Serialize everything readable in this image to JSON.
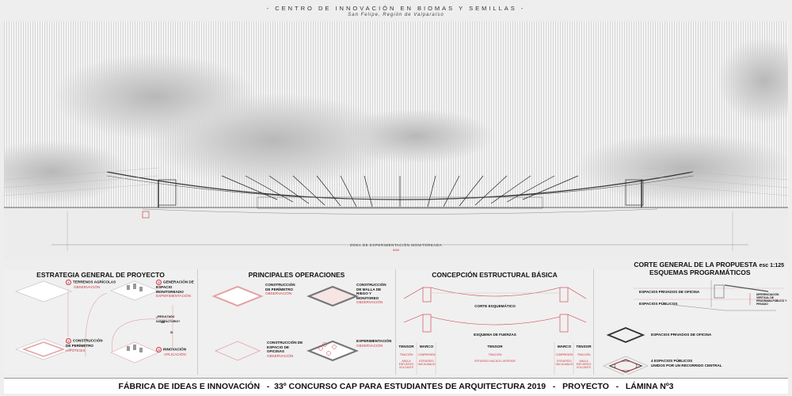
{
  "header": {
    "title": "- CENTRO DE INNOVACIÓN EN BIOMAS Y SEMILLAS -",
    "subtitle": "San Felipe, Región de Valparaíso"
  },
  "section": {
    "dimension_label": "ZONA DE EXPERIMENTACIÓN MONITOREADA",
    "dimension_value": "80M",
    "corte_title": "CORTE GENERAL DE LA PROPUESTA",
    "corte_scale": "esc 1:125"
  },
  "colors": {
    "accent": "#d0383f",
    "background": "#eeeeee"
  },
  "estrategia": {
    "title": "ESTRATEGIA GENERAL DE PROYECTO",
    "steps": [
      {
        "n": "1",
        "label": "TERRENOS AGRÍCOLAS",
        "sub": "OBSERVACIÓN"
      },
      {
        "n": "2",
        "label": "CONSTRUCCIÓN DE PERÍMETRO",
        "sub": "HIPÓTESIS"
      },
      {
        "n": "3",
        "label": "GENERACIÓN DE ESPACIO MONITOREADO",
        "sub": "EXPERIMENTACIÓN"
      },
      {
        "n": "4",
        "label": "INNOVACIÓN",
        "sub": "APLICACIÓN"
      }
    ],
    "question": "¿RESULTADO SATISFACTORIO?",
    "no": "NO",
    "si": "SI"
  },
  "operaciones": {
    "title": "PRINCIPALES OPERACIONES",
    "items": [
      {
        "label": "CONSTRUCCIÓN DE PERÍMETRO",
        "sub": "OBSERVACIÓN"
      },
      {
        "label": "CONSTRUCCIÓN DE MALLA DE RIEGO Y MONITOREO",
        "sub": "OBSERVACIÓN"
      },
      {
        "label": "CONSTRUCCIÓN DE ESPACIO DE OFICINAS",
        "sub": "OBSERVACIÓN"
      },
      {
        "label": "EXPERIMENTACIÓN",
        "sub": "OBSERVACIÓN"
      }
    ]
  },
  "estructural": {
    "title": "CONCEPCIÓN ESTRUCTURAL BÁSICA",
    "corte": "CORTE ESQUEMÁTICO",
    "fuerzas": "ESQUEMA DE FUERZAS",
    "columns": [
      {
        "head": "TENSOR",
        "force": "TRACCIÓN",
        "desc": "ANULA ESFUERZO VOLCANTE"
      },
      {
        "head": "MARCO",
        "force": "COMPRESIÓN",
        "desc": "ESFUERZO HACIA ABAJO"
      },
      {
        "head": "TENSOR",
        "force": "TRACCIÓN",
        "desc": "ESFUERZO HACIA EL INTERIOR"
      },
      {
        "head": "MARCO",
        "force": "COMPRESIÓN",
        "desc": "ESFUERZO HACIA ABAJO"
      },
      {
        "head": "TENSOR",
        "force": "TRACCIÓN",
        "desc": "ANULA ESFUERZO VOLCANTE"
      }
    ]
  },
  "esquemas": {
    "title": "ESQUEMAS PROGRAMÁTICOS",
    "privados": "ESPACIOS PRIVADOS DE OFICINA",
    "publicos": "ESPACIOS PÚBLICOS",
    "diferenciacion": "DIFERENCIACIÓN VERTICAL DE PROGRAMA PÚBLICO Y PRIVADO",
    "privados2": "ESPACIOS PRIVADOS DE OFICINA",
    "publicos2a": "4 ESPACIOS PÚBLICOS",
    "publicos2b": "UNIDOS POR UN RECORRIDO  CENTRAL"
  },
  "footer": {
    "text": "FÁBRICA DE IDEAS E INNOVACIÓN   -  33º CONCURSO CAP PARA ESTUDIANTES DE ARQUITECTURA 2019   -   PROYECTO   -   LÁMINA Nº3"
  }
}
